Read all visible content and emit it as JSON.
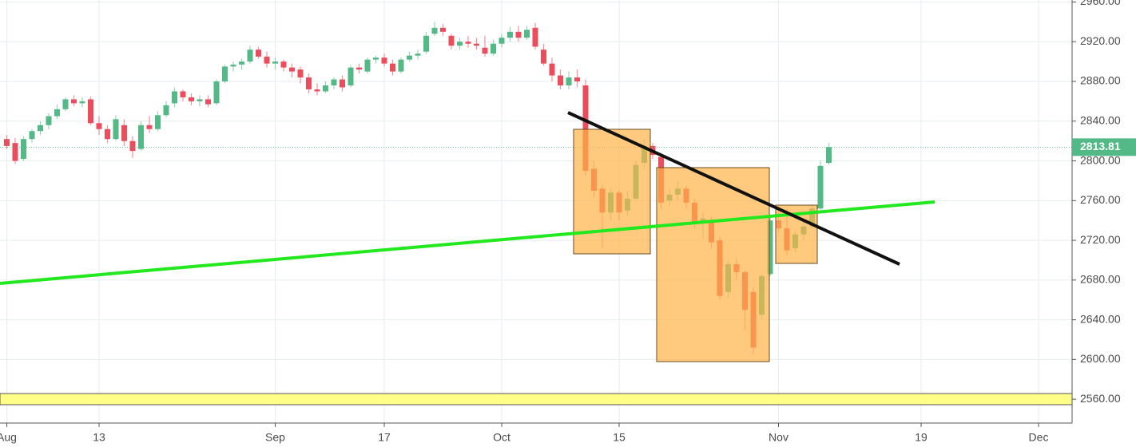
{
  "chart_data": {
    "type": "candlestick",
    "categories": [
      "Aug",
      null,
      null,
      null,
      null,
      null,
      null,
      null,
      null,
      null,
      null,
      "13",
      null,
      null,
      null,
      null,
      null,
      null,
      null,
      null,
      null,
      null,
      null,
      null,
      null,
      null,
      null,
      null,
      null,
      null,
      null,
      null,
      "Sep",
      null,
      null,
      null,
      null,
      null,
      null,
      null,
      null,
      null,
      null,
      null,
      null,
      "17",
      null,
      null,
      null,
      null,
      null,
      null,
      null,
      null,
      null,
      null,
      null,
      null,
      null,
      "Oct",
      null,
      null,
      null,
      null,
      null,
      null,
      null,
      null,
      null,
      null,
      null,
      null,
      null,
      "15",
      null,
      null,
      null,
      null,
      null,
      null,
      null,
      null,
      null,
      null,
      null,
      null,
      null,
      null,
      null,
      null,
      null,
      null,
      "Nov",
      null,
      null,
      null,
      null,
      null,
      null,
      null,
      null,
      null,
      null,
      null,
      null,
      null,
      null,
      null,
      null,
      "19",
      null,
      null,
      null,
      null,
      null,
      null,
      null,
      null,
      null,
      null,
      null,
      null,
      null,
      "Dec"
    ],
    "open": [
      2822,
      2818,
      2802,
      2822,
      2830,
      2836,
      2845,
      2852,
      2862,
      2858,
      2862,
      2838,
      2832,
      2822,
      2836,
      2820,
      2812,
      2836,
      2832,
      2846,
      2858,
      2870,
      2864,
      2860,
      2862,
      2858,
      2880,
      2895,
      2897,
      2900,
      2912,
      2905,
      2898,
      2900,
      2894,
      2892,
      2884,
      2872,
      2870,
      2876,
      2882,
      2876,
      2894,
      2890,
      2902,
      2904,
      2898,
      2890,
      2902,
      2906,
      2910,
      2928,
      2934,
      2926,
      2916,
      2920,
      2918,
      2914,
      2908,
      2918,
      2924,
      2930,
      2924,
      2934,
      2912,
      2898,
      2886,
      2876,
      2884,
      2876,
      2792,
      2772,
      2748,
      2768,
      2750,
      2762,
      2798,
      2815,
      2804,
      2760,
      2766,
      2772,
      2758,
      2738,
      2740,
      2720,
      2668,
      2696,
      2688,
      2668,
      2645,
      2686,
      2740,
      2732,
      2712,
      2726,
      2734,
      2752,
      2798,
      null,
      null,
      null,
      null,
      null,
      null,
      null,
      null,
      null,
      null,
      null,
      null,
      null,
      null,
      null,
      null,
      null,
      null,
      null,
      null,
      null,
      null,
      null,
      null,
      null
    ],
    "high": [
      2826,
      2823,
      2825,
      2832,
      2840,
      2848,
      2857,
      2864,
      2866,
      2864,
      2865,
      2845,
      2836,
      2846,
      2842,
      2825,
      2840,
      2845,
      2850,
      2860,
      2874,
      2872,
      2868,
      2866,
      2866,
      2882,
      2897,
      2900,
      2903,
      2916,
      2915,
      2910,
      2904,
      2902,
      2898,
      2895,
      2888,
      2878,
      2880,
      2884,
      2886,
      2896,
      2898,
      2904,
      2906,
      2908,
      2902,
      2904,
      2910,
      2912,
      2930,
      2940,
      2938,
      2928,
      2924,
      2926,
      2924,
      2926,
      2922,
      2928,
      2935,
      2936,
      2936,
      2939,
      2918,
      2904,
      2892,
      2890,
      2892,
      2882,
      2800,
      2776,
      2772,
      2770,
      2770,
      2800,
      2822,
      2818,
      2808,
      2772,
      2780,
      2775,
      2762,
      2748,
      2744,
      2724,
      2700,
      2702,
      2690,
      2672,
      2686,
      2746,
      2752,
      2752,
      2730,
      2738,
      2756,
      2800,
      2818,
      null,
      null,
      null,
      null,
      null,
      null,
      null,
      null,
      null,
      null,
      null,
      null,
      null,
      null,
      null,
      null,
      null,
      null,
      null,
      null,
      null,
      null,
      null,
      null,
      null
    ],
    "low": [
      2812,
      2797,
      2800,
      2818,
      2826,
      2832,
      2842,
      2850,
      2855,
      2854,
      2836,
      2826,
      2818,
      2820,
      2815,
      2803,
      2810,
      2828,
      2830,
      2844,
      2854,
      2860,
      2856,
      2855,
      2854,
      2856,
      2878,
      2890,
      2892,
      2898,
      2903,
      2894,
      2892,
      2890,
      2884,
      2878,
      2868,
      2866,
      2868,
      2872,
      2870,
      2874,
      2888,
      2888,
      2898,
      2895,
      2886,
      2888,
      2900,
      2902,
      2908,
      2926,
      2926,
      2912,
      2912,
      2914,
      2912,
      2905,
      2906,
      2914,
      2920,
      2920,
      2922,
      2912,
      2896,
      2880,
      2872,
      2872,
      2874,
      2785,
      2764,
      2712,
      2740,
      2740,
      2745,
      2760,
      2792,
      2802,
      2752,
      2755,
      2760,
      2752,
      2732,
      2722,
      2712,
      2660,
      2662,
      2680,
      2630,
      2605,
      2640,
      2684,
      2728,
      2705,
      2708,
      2720,
      2732,
      2750,
      2796,
      null,
      null,
      null,
      null,
      null,
      null,
      null,
      null,
      null,
      null,
      null,
      null,
      null,
      null,
      null,
      null,
      null,
      null,
      null,
      null,
      null,
      null,
      null,
      null,
      null
    ],
    "close": [
      2815,
      2800,
      2822,
      2830,
      2836,
      2845,
      2852,
      2862,
      2858,
      2860,
      2838,
      2832,
      2822,
      2842,
      2820,
      2810,
      2836,
      2832,
      2846,
      2856,
      2870,
      2864,
      2860,
      2862,
      2857,
      2880,
      2895,
      2897,
      2900,
      2912,
      2905,
      2898,
      2900,
      2894,
      2890,
      2884,
      2872,
      2870,
      2876,
      2882,
      2874,
      2894,
      2892,
      2902,
      2904,
      2898,
      2890,
      2902,
      2906,
      2908,
      2926,
      2934,
      2930,
      2916,
      2920,
      2918,
      2916,
      2908,
      2918,
      2924,
      2930,
      2924,
      2932,
      2915,
      2898,
      2886,
      2876,
      2884,
      2880,
      2790,
      2770,
      2748,
      2768,
      2748,
      2762,
      2796,
      2815,
      2806,
      2758,
      2766,
      2772,
      2758,
      2738,
      2742,
      2718,
      2664,
      2696,
      2688,
      2650,
      2612,
      2684,
      2740,
      2732,
      2710,
      2726,
      2734,
      2752,
      2795,
      2813.81,
      null,
      null,
      null,
      null,
      null,
      null,
      null,
      null,
      null,
      null,
      null,
      null,
      null,
      null,
      null,
      null,
      null,
      null,
      null,
      null,
      null,
      null,
      null,
      null,
      null
    ],
    "up_color": "#53b987",
    "down_color": "#eb4d5c",
    "ylim": [
      2536,
      2962
    ],
    "yticks": [
      {
        "value": 2560,
        "label": "2560.00"
      },
      {
        "value": 2600,
        "label": "2600.00"
      },
      {
        "value": 2640,
        "label": "2640.00"
      },
      {
        "value": 2680,
        "label": "2680.00"
      },
      {
        "value": 2720,
        "label": "2720.00"
      },
      {
        "value": 2760,
        "label": "2760.00"
      },
      {
        "value": 2800,
        "label": "2800.00"
      },
      {
        "value": 2840,
        "label": "2840.00"
      },
      {
        "value": 2880,
        "label": "2880.00"
      },
      {
        "value": 2920,
        "label": "2920.00"
      },
      {
        "value": 2960,
        "label": "2960.00"
      }
    ],
    "grid": true
  }
}
